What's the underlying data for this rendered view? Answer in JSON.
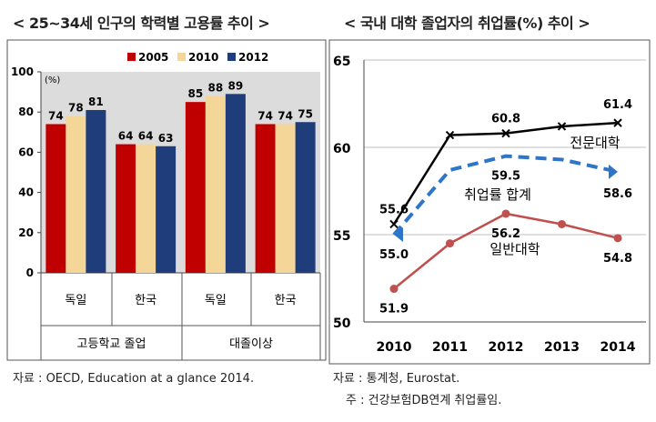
{
  "titles": {
    "left": "< 25~34세 인구의 학력별 고용률 추이 >",
    "right": "< 국내 대학 졸업자의 취업률(%) 추이 >"
  },
  "chart_data": [
    {
      "type": "bar",
      "unit_label": "(%)",
      "ylim": [
        0,
        100
      ],
      "yticks": [
        "0",
        "20",
        "40",
        "60",
        "80",
        "100"
      ],
      "ytick_values": [
        0,
        20,
        40,
        60,
        80,
        100
      ],
      "categories": [
        "독일",
        "한국",
        "독일",
        "한국"
      ],
      "groups": [
        "고등학교 졸업",
        "대졸이상"
      ],
      "series": [
        {
          "name": "2005",
          "color": "#c00000",
          "values": [
            74,
            64,
            85,
            74
          ],
          "labels": [
            "74",
            "64",
            "85",
            "74"
          ]
        },
        {
          "name": "2010",
          "color": "#f4d699",
          "values": [
            78,
            64,
            88,
            74
          ],
          "labels": [
            "78",
            "64",
            "88",
            "74"
          ]
        },
        {
          "name": "2012",
          "color": "#1f3d7a",
          "values": [
            81,
            63,
            89,
            75
          ],
          "labels": [
            "81",
            "63",
            "89",
            "75"
          ]
        }
      ],
      "legend": "top",
      "source": "자료 : OECD, Education at a glance 2014."
    },
    {
      "type": "line",
      "ylim": [
        50,
        65
      ],
      "yticks": [
        "50",
        "55",
        "60",
        "65"
      ],
      "ytick_values": [
        50,
        55,
        60,
        65
      ],
      "x": [
        "2010",
        "2011",
        "2012",
        "2013",
        "2014"
      ],
      "series": [
        {
          "name": "전문대학",
          "color": "#000000",
          "style": "solid-x",
          "values": [
            55.6,
            60.7,
            60.8,
            61.2,
            61.4
          ],
          "labels": [
            "55.6",
            "",
            "60.8",
            "",
            "61.4"
          ]
        },
        {
          "name": "취업률 합계",
          "color": "#2e75c8",
          "style": "dashed",
          "values": [
            55.0,
            58.7,
            59.5,
            59.3,
            58.6
          ],
          "labels": [
            "55.0",
            "",
            "59.5",
            "",
            "58.6"
          ]
        },
        {
          "name": "일반대학",
          "color": "#c0504d",
          "style": "solid-dot",
          "values": [
            51.9,
            54.5,
            56.2,
            55.6,
            54.8
          ],
          "labels": [
            "51.9",
            "",
            "56.2",
            "",
            "54.8"
          ]
        }
      ],
      "source": "자료 : 통계청, Eurostat.",
      "note": "주 : 건강보험DB연계 취업률임."
    }
  ]
}
